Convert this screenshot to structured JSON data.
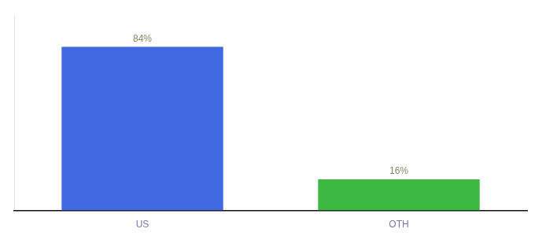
{
  "chart_data": {
    "type": "bar",
    "categories": [
      "US",
      "OTH"
    ],
    "values": [
      84,
      16
    ],
    "value_labels": [
      "84%",
      "16%"
    ],
    "colors": [
      "#4169e1",
      "#3cb843"
    ],
    "ylim": [
      0,
      100
    ],
    "grid": false,
    "data_labels": true,
    "tick_labels": "x"
  }
}
